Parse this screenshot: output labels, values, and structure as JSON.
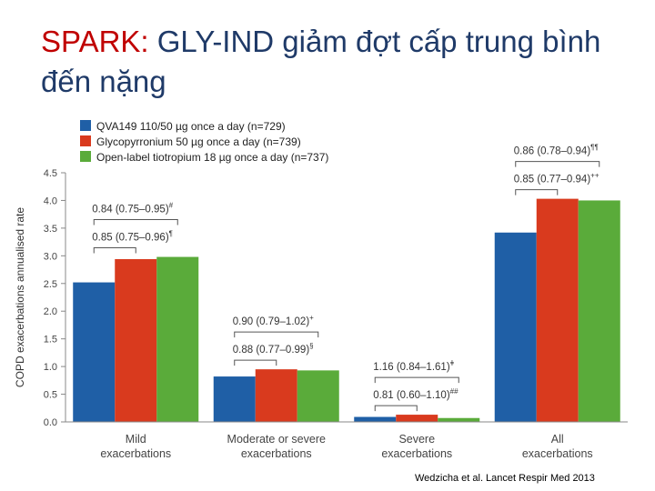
{
  "slide": {
    "title_prefix": "SPARK:",
    "title_rest": " GLY-IND giảm đợt cấp trung bình đến nặng",
    "citation": "Wedzicha et al. Lancet Respir Med 2013"
  },
  "chart_data": {
    "type": "bar",
    "title": "",
    "ylabel": "COPD exacerbations annualised rate",
    "xlabel": "",
    "ylim": [
      0,
      4.5
    ],
    "yticks": [
      "0.0",
      "0.5",
      "1.0",
      "1.5",
      "2.0",
      "2.5",
      "3.0",
      "3.5",
      "4.0",
      "4.5"
    ],
    "grid": false,
    "legend_position": "top-left",
    "categories": [
      [
        "Mild",
        "exacerbations"
      ],
      [
        "Moderate or severe",
        "exacerbations"
      ],
      [
        "Severe",
        "exacerbations"
      ],
      [
        "All",
        "exacerbations"
      ]
    ],
    "series": [
      {
        "name": "QVA149 110/50 µg once a day (n=729)",
        "color": "#1f5fa6",
        "values": [
          2.52,
          0.82,
          0.09,
          3.42
        ]
      },
      {
        "name": "Glycopyrronium 50 µg once a day (n=739)",
        "color": "#d93a1e",
        "values": [
          2.94,
          0.95,
          0.13,
          4.03
        ]
      },
      {
        "name": "Open-label tiotropium 18 µg once a day (n=737)",
        "color": "#5aab3a",
        "values": [
          2.98,
          0.93,
          0.07,
          4.0
        ]
      }
    ],
    "annotations": [
      {
        "category": 0,
        "compare": [
          0,
          2
        ],
        "text": "0.84 (0.75–0.95)",
        "mark": "#"
      },
      {
        "category": 0,
        "compare": [
          0,
          1
        ],
        "text": "0.85 (0.75–0.96)",
        "mark": "¶"
      },
      {
        "category": 1,
        "compare": [
          0,
          2
        ],
        "text": "0.90 (0.79–1.02)",
        "mark": "+"
      },
      {
        "category": 1,
        "compare": [
          0,
          1
        ],
        "text": "0.88 (0.77–0.99)",
        "mark": "§"
      },
      {
        "category": 2,
        "compare": [
          0,
          2
        ],
        "text": "1.16 (0.84–1.61)",
        "mark": "ǂ"
      },
      {
        "category": 2,
        "compare": [
          0,
          1
        ],
        "text": "0.81 (0.60–1.10)",
        "mark": "##"
      },
      {
        "category": 3,
        "compare": [
          0,
          2
        ],
        "text": "0.86 (0.78–0.94)",
        "mark": "¶¶"
      },
      {
        "category": 3,
        "compare": [
          0,
          1
        ],
        "text": "0.85 (0.77–0.94)",
        "mark": "++"
      }
    ]
  }
}
